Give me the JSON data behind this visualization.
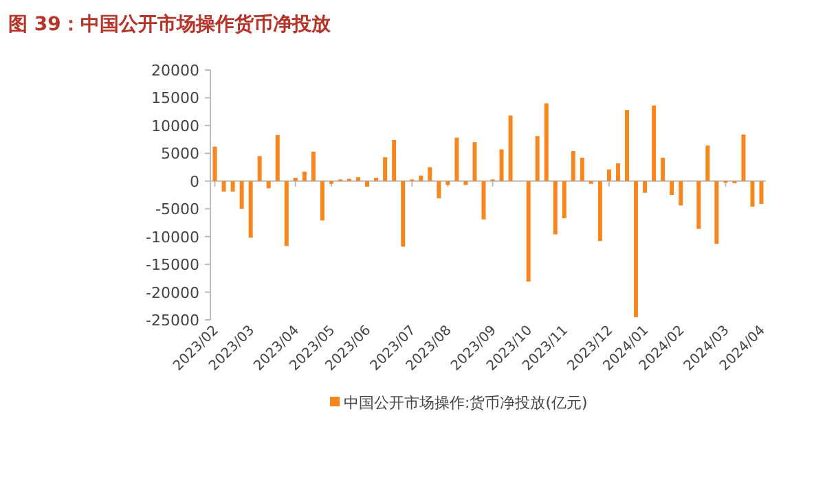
{
  "chart_data": {
    "type": "bar",
    "title": "图 39：中国公开市场操作货币净投放",
    "categories": [
      "2023/02",
      null,
      null,
      null,
      "2023/03",
      null,
      null,
      null,
      null,
      "2023/04",
      null,
      null,
      null,
      "2023/05",
      null,
      null,
      null,
      "2023/06",
      null,
      null,
      null,
      null,
      "2023/07",
      null,
      null,
      null,
      "2023/08",
      null,
      null,
      null,
      null,
      "2023/09",
      null,
      null,
      null,
      "2023/10",
      null,
      null,
      null,
      "2023/11",
      null,
      null,
      null,
      null,
      "2023/12",
      null,
      null,
      null,
      "2024/01",
      null,
      null,
      null,
      "2024/02",
      null,
      null,
      null,
      null,
      "2024/03",
      null,
      null,
      null,
      "2024/04"
    ],
    "series": [
      {
        "name": "中国公开市场操作:货币净投放(亿元)",
        "color": "#f7861e",
        "values": [
          6200,
          -1900,
          -1900,
          -5000,
          -10200,
          4500,
          -1300,
          8300,
          -11700,
          600,
          1700,
          5300,
          -7100,
          -500,
          300,
          400,
          700,
          -1000,
          600,
          4300,
          7400,
          -11800,
          300,
          1000,
          2500,
          -3100,
          -700,
          7800,
          -700,
          7000,
          -6900,
          300,
          5700,
          11800,
          0,
          -18100,
          8100,
          14000,
          -9600,
          -6700,
          5400,
          4200,
          -500,
          -10800,
          2100,
          3200,
          12800,
          -24500,
          -2100,
          13600,
          4200,
          -2500,
          -4400,
          0,
          -8600,
          6400,
          -11300,
          -300,
          -400,
          8400,
          -4600,
          -4100
        ]
      }
    ],
    "ylim": [
      -25000,
      20000
    ],
    "yticks": [
      -25000,
      -20000,
      -15000,
      -10000,
      -5000,
      0,
      5000,
      10000,
      15000,
      20000
    ],
    "legend": "bottom"
  }
}
